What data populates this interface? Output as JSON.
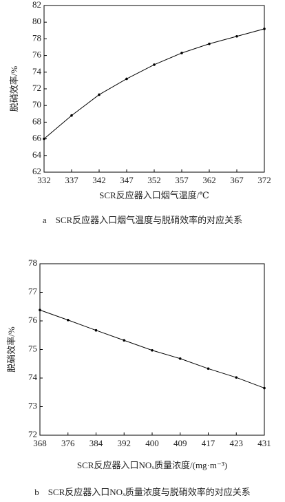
{
  "chart_data": [
    {
      "type": "line",
      "x_label": "SCR反应器入口烟气温度/℃",
      "y_label": "脱硝效率/%",
      "caption": "a　SCR反应器入口烟气温度与脱硝效率的对应关系",
      "x": [
        332,
        337,
        342,
        347,
        352,
        357,
        362,
        367,
        372
      ],
      "values": [
        66.0,
        68.8,
        71.3,
        73.2,
        74.9,
        76.3,
        77.4,
        78.3,
        79.2
      ],
      "color": "#000000",
      "xlim": [
        332,
        372
      ],
      "xticks": [
        332,
        337,
        342,
        347,
        352,
        357,
        362,
        367,
        372
      ],
      "ylim": [
        62,
        82
      ],
      "yticks": [
        62,
        64,
        66,
        68,
        70,
        72,
        74,
        76,
        78,
        80,
        82
      ]
    },
    {
      "type": "line",
      "x_label": "SCR反应器入口NOₓ质量浓度/(mg·m⁻³)",
      "y_label": "脱硝效率/%",
      "caption": "b　SCR反应器入口NOₓ质量浓度与脱硝效率的对应关系",
      "categories": [
        "368",
        "376",
        "384",
        "392",
        "400",
        "409",
        "417",
        "423",
        "431"
      ],
      "values": [
        76.38,
        76.03,
        75.67,
        75.32,
        74.97,
        74.68,
        74.33,
        74.02,
        73.65
      ],
      "color": "#000000",
      "ylim": [
        72,
        78
      ],
      "yticks": [
        72,
        73,
        74,
        75,
        76,
        77,
        78
      ]
    }
  ]
}
